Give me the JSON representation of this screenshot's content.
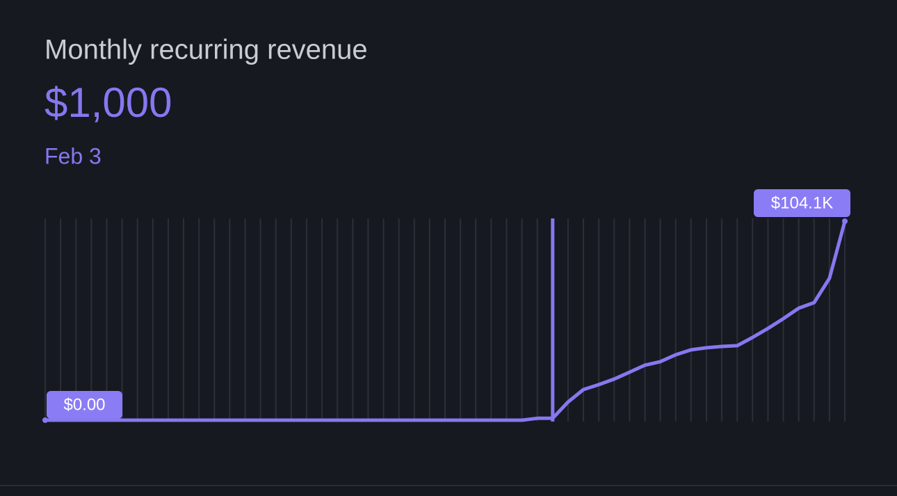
{
  "header": {
    "title": "Monthly recurring revenue",
    "value": {
      "value": 1000,
      "label": "$1,000"
    },
    "date": "Feb 3"
  },
  "chart_data": {
    "type": "line",
    "color": "#8678f0",
    "selected_index": 33,
    "values": [
      0,
      0,
      0,
      0,
      0,
      0,
      0,
      0,
      0,
      0,
      0,
      0,
      0,
      0,
      0,
      0,
      0,
      0,
      0,
      0,
      0,
      0,
      0,
      0,
      0,
      0,
      0,
      0,
      0,
      0,
      0,
      0,
      1000,
      1000,
      9500,
      16000,
      18600,
      21500,
      25100,
      28800,
      30600,
      34200,
      36800,
      37900,
      38600,
      39000,
      43300,
      48000,
      53100,
      58600,
      61500,
      74300,
      104100
    ],
    "value_labels": [
      "$0.00",
      null,
      null,
      null,
      null,
      null,
      null,
      null,
      null,
      null,
      null,
      null,
      null,
      null,
      null,
      null,
      null,
      null,
      null,
      null,
      null,
      null,
      null,
      null,
      null,
      null,
      null,
      null,
      null,
      null,
      null,
      null,
      null,
      null,
      null,
      null,
      null,
      null,
      null,
      null,
      null,
      null,
      null,
      null,
      null,
      null,
      null,
      null,
      null,
      null,
      null,
      null,
      "$104.1K"
    ]
  }
}
